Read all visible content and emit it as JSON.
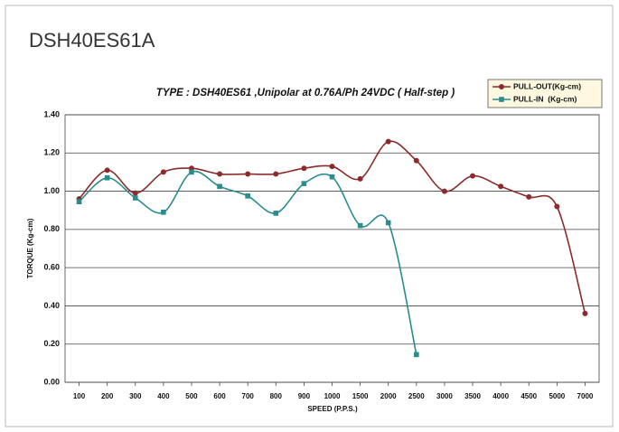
{
  "chart_data": {
    "type": "line",
    "heading": "DSH40ES61A",
    "title": "TYPE : DSH40ES61 ,Unipolar at 0.76A/Ph 24VDC  ( Half-step )",
    "x_label": "SPEED (P.P.S.)",
    "y_label": "TORQUE (Kg-cm)",
    "categories": [
      "100",
      "200",
      "300",
      "400",
      "500",
      "600",
      "700",
      "800",
      "900",
      "1000",
      "1500",
      "2000",
      "2500",
      "3000",
      "3500",
      "4000",
      "4500",
      "5000",
      "7000"
    ],
    "series": [
      {
        "name": "PULL-OUT(Kg-cm)",
        "color": "#8b2b2b",
        "marker": "circle",
        "values": [
          0.96,
          1.11,
          0.99,
          1.1,
          1.12,
          1.09,
          1.09,
          1.09,
          1.12,
          1.13,
          1.065,
          1.26,
          1.16,
          1.0,
          1.08,
          1.025,
          0.97,
          0.92,
          0.36
        ]
      },
      {
        "name": "PULL-IN  (Kg-cm)",
        "color": "#2a8c8c",
        "marker": "square",
        "values": [
          0.945,
          1.07,
          0.965,
          0.89,
          1.1,
          1.025,
          0.975,
          0.885,
          1.04,
          1.075,
          0.82,
          0.835,
          0.145,
          null,
          null,
          null,
          null,
          null,
          null
        ]
      }
    ],
    "ylim": [
      0,
      1.4
    ],
    "yticks": [
      {
        "value": 0,
        "label": "0.00"
      },
      {
        "value": 0.2,
        "label": "0.20"
      },
      {
        "value": 0.4,
        "label": "0.40"
      },
      {
        "value": 0.6,
        "label": "0.60"
      },
      {
        "value": 0.8,
        "label": "0.80"
      },
      {
        "value": 1,
        "label": "1.00"
      },
      {
        "value": 1.2,
        "label": "1.20"
      },
      {
        "value": 1.4,
        "label": "1.40"
      }
    ],
    "grid": true,
    "legend": "top-right"
  }
}
